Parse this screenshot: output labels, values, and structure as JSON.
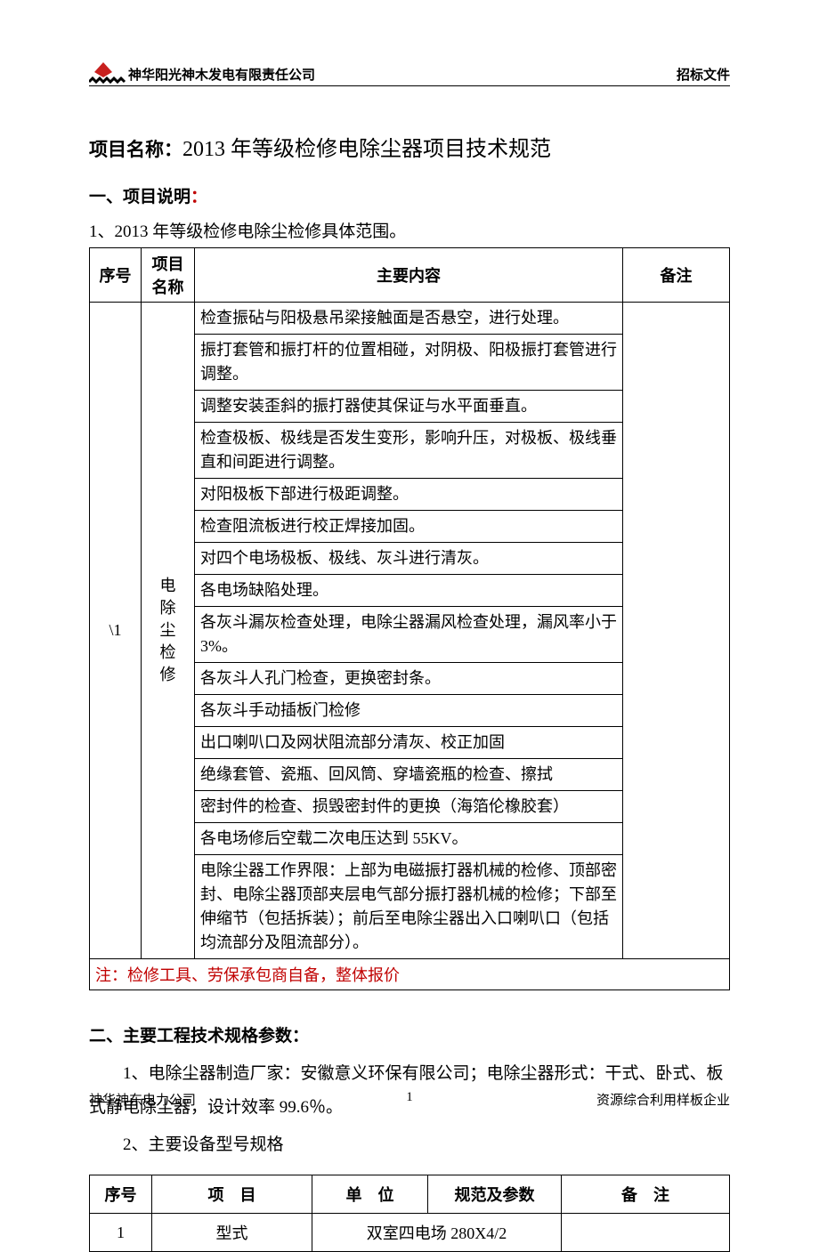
{
  "header": {
    "company": "神华阳光神木发电有限责任公司",
    "doc_type": "招标文件",
    "logo": {
      "diamond_color": "#c8201e",
      "stripe_color": "#000000"
    }
  },
  "title": {
    "label": "项目名称：",
    "text": "2013 年等级检修电除尘器项目技术规范"
  },
  "section1": {
    "heading_prefix": "一、项目说明",
    "heading_colon": "：",
    "intro": "1、2013 年等级检修电除尘检修具体范围。",
    "table": {
      "headers": {
        "seq": "序号",
        "name": "项目名称",
        "content": "主要内容",
        "note": "备注"
      },
      "seq_value": "\\1",
      "name_value": "电除尘检修",
      "rows": [
        "检查振砧与阳极悬吊梁接触面是否悬空，进行处理。",
        "振打套管和振打杆的位置相碰，对阴极、阳极振打套管进行调整。",
        "调整安装歪斜的振打器使其保证与水平面垂直。",
        "检查极板、极线是否发生变形，影响升压，对极板、极线垂直和间距进行调整。",
        "对阳极板下部进行极距调整。",
        "检查阻流板进行校正焊接加固。",
        "对四个电场极板、极线、灰斗进行清灰。",
        "各电场缺陷处理。",
        "各灰斗漏灰检查处理，电除尘器漏风检查处理，漏风率小于 3%。",
        "各灰斗人孔门检查，更换密封条。",
        "各灰斗手动插板门检修",
        "出口喇叭口及网状阻流部分清灰、校正加固",
        "绝缘套管、瓷瓶、回风筒、穿墙瓷瓶的检查、擦拭",
        "密封件的检查、损毁密封件的更换（海箔伦橡胶套）",
        "各电场修后空载二次电压达到 55KV。",
        "电除尘器工作界限：上部为电磁振打器机械的检修、顶部密封、电除尘器顶部夹层电气部分振打器机械的检修；下部至伸缩节（包括拆装）；前后至电除尘器出入口喇叭口（包括均流部分及阻流部分）。"
      ],
      "note_row": "注：检修工具、劳保承包商自备，整体报价"
    }
  },
  "section2": {
    "heading": "二、主要工程技术规格参数：",
    "para1": "1、电除尘器制造厂家：安徽意义环保有限公司；电除尘器形式：干式、卧式、板式静电除尘器，设计效率 99.6％。",
    "para2": "2、主要设备型号规格",
    "table": {
      "headers": {
        "seq": "序号",
        "item": "项　目",
        "unit": "单　位",
        "param": "规范及参数",
        "note": "备　注"
      },
      "row1": {
        "seq": "1",
        "item": "型式",
        "merged": "双室四电场 280X4/2",
        "note": ""
      }
    }
  },
  "footer": {
    "left": "神华神东电力公司",
    "page": "1",
    "right": "资源综合利用样板企业"
  }
}
